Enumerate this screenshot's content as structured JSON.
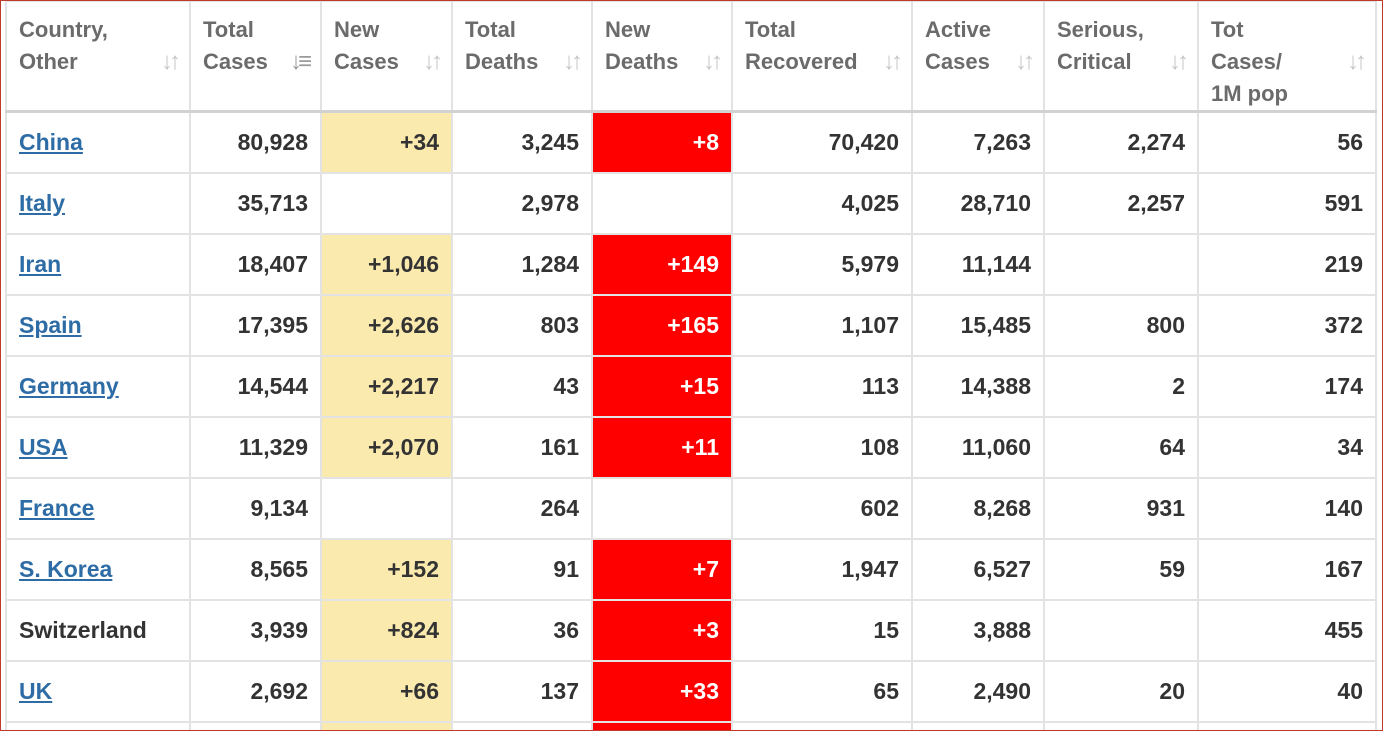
{
  "headers": [
    {
      "line1": "Country,",
      "line2": "Other"
    },
    {
      "line1": "Total",
      "line2": "Cases"
    },
    {
      "line1": "New",
      "line2": "Cases"
    },
    {
      "line1": "Total",
      "line2": "Deaths"
    },
    {
      "line1": "New",
      "line2": "Deaths"
    },
    {
      "line1": "Total",
      "line2": "Recovered"
    },
    {
      "line1": "Active",
      "line2": "Cases"
    },
    {
      "line1": "Serious,",
      "line2": "Critical"
    },
    {
      "line1": "Tot Cases/",
      "line2": "1M pop"
    }
  ],
  "sort_icon": "sort-arrows-icon",
  "active_sort_column": 1,
  "colors": {
    "new_cases_highlight": "#fbeaae",
    "new_deaths_highlight": "#ff0000",
    "link": "#2e6ca6"
  },
  "rows": [
    {
      "country": "China",
      "link": true,
      "total_cases": "80,928",
      "new_cases": "+34",
      "total_deaths": "3,245",
      "new_deaths": "+8",
      "total_recovered": "70,420",
      "active_cases": "7,263",
      "serious_critical": "2,274",
      "tot_cases_1m": "56"
    },
    {
      "country": "Italy",
      "link": true,
      "total_cases": "35,713",
      "new_cases": "",
      "total_deaths": "2,978",
      "new_deaths": "",
      "total_recovered": "4,025",
      "active_cases": "28,710",
      "serious_critical": "2,257",
      "tot_cases_1m": "591"
    },
    {
      "country": "Iran",
      "link": true,
      "total_cases": "18,407",
      "new_cases": "+1,046",
      "total_deaths": "1,284",
      "new_deaths": "+149",
      "total_recovered": "5,979",
      "active_cases": "11,144",
      "serious_critical": "",
      "tot_cases_1m": "219"
    },
    {
      "country": "Spain",
      "link": true,
      "total_cases": "17,395",
      "new_cases": "+2,626",
      "total_deaths": "803",
      "new_deaths": "+165",
      "total_recovered": "1,107",
      "active_cases": "15,485",
      "serious_critical": "800",
      "tot_cases_1m": "372"
    },
    {
      "country": "Germany",
      "link": true,
      "total_cases": "14,544",
      "new_cases": "+2,217",
      "total_deaths": "43",
      "new_deaths": "+15",
      "total_recovered": "113",
      "active_cases": "14,388",
      "serious_critical": "2",
      "tot_cases_1m": "174"
    },
    {
      "country": "USA",
      "link": true,
      "total_cases": "11,329",
      "new_cases": "+2,070",
      "total_deaths": "161",
      "new_deaths": "+11",
      "total_recovered": "108",
      "active_cases": "11,060",
      "serious_critical": "64",
      "tot_cases_1m": "34"
    },
    {
      "country": "France",
      "link": true,
      "total_cases": "9,134",
      "new_cases": "",
      "total_deaths": "264",
      "new_deaths": "",
      "total_recovered": "602",
      "active_cases": "8,268",
      "serious_critical": "931",
      "tot_cases_1m": "140"
    },
    {
      "country": "S. Korea",
      "link": true,
      "total_cases": "8,565",
      "new_cases": "+152",
      "total_deaths": "91",
      "new_deaths": "+7",
      "total_recovered": "1,947",
      "active_cases": "6,527",
      "serious_critical": "59",
      "tot_cases_1m": "167"
    },
    {
      "country": "Switzerland",
      "link": false,
      "total_cases": "3,939",
      "new_cases": "+824",
      "total_deaths": "36",
      "new_deaths": "+3",
      "total_recovered": "15",
      "active_cases": "3,888",
      "serious_critical": "",
      "tot_cases_1m": "455"
    },
    {
      "country": "UK",
      "link": true,
      "total_cases": "2,692",
      "new_cases": "+66",
      "total_deaths": "137",
      "new_deaths": "+33",
      "total_recovered": "65",
      "active_cases": "2,490",
      "serious_critical": "20",
      "tot_cases_1m": "40"
    }
  ],
  "partial_row": {
    "new_cases_highlight": true,
    "new_deaths_highlight": true
  }
}
